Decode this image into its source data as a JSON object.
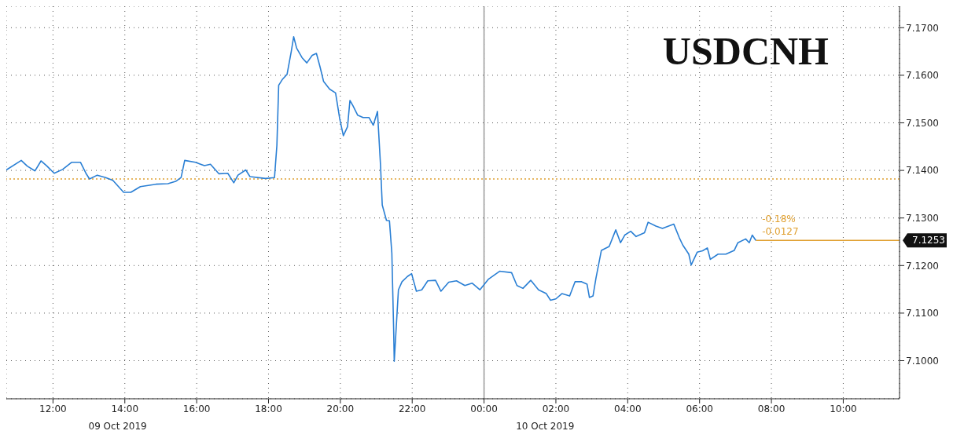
{
  "chart_data": {
    "type": "line",
    "title": "USDCNH",
    "x": [
      "2019-10-09T10:42",
      "2019-10-09T11:07",
      "2019-10-09T11:17",
      "2019-10-09T11:30",
      "2019-10-09T11:40",
      "2019-10-09T11:50",
      "2019-10-09T12:02",
      "2019-10-09T12:16",
      "2019-10-09T12:31",
      "2019-10-09T12:46",
      "2019-10-09T12:55",
      "2019-10-09T13:01",
      "2019-10-09T13:14",
      "2019-10-09T13:28",
      "2019-10-09T13:40",
      "2019-10-09T13:58",
      "2019-10-09T14:10",
      "2019-10-09T14:26",
      "2019-10-09T14:52",
      "2019-10-09T15:12",
      "2019-10-09T15:25",
      "2019-10-09T15:34",
      "2019-10-09T15:40",
      "2019-10-09T15:58",
      "2019-10-09T16:13",
      "2019-10-09T16:23",
      "2019-10-09T16:37",
      "2019-10-09T16:52",
      "2019-10-09T17:02",
      "2019-10-09T17:09",
      "2019-10-09T17:22",
      "2019-10-09T17:29",
      "2019-10-09T17:55",
      "2019-10-09T18:10",
      "2019-10-09T18:14",
      "2019-10-09T18:17",
      "2019-10-09T18:23",
      "2019-10-09T18:31",
      "2019-10-09T18:38",
      "2019-10-09T18:42",
      "2019-10-09T18:47",
      "2019-10-09T18:56",
      "2019-10-09T19:04",
      "2019-10-09T19:13",
      "2019-10-09T19:20",
      "2019-10-09T19:26",
      "2019-10-09T19:32",
      "2019-10-09T19:42",
      "2019-10-09T19:52",
      "2019-10-09T19:59",
      "2019-10-09T20:05",
      "2019-10-09T20:12",
      "2019-10-09T20:16",
      "2019-10-09T20:21",
      "2019-10-09T20:29",
      "2019-10-09T20:38",
      "2019-10-09T20:48",
      "2019-10-09T20:55",
      "2019-10-09T21:02",
      "2019-10-09T21:07",
      "2019-10-09T21:10",
      "2019-10-09T21:17",
      "2019-10-09T21:22",
      "2019-10-09T21:26",
      "2019-10-09T21:29",
      "2019-10-09T21:30",
      "2019-10-09T21:37",
      "2019-10-09T21:43",
      "2019-10-09T21:52",
      "2019-10-09T21:59",
      "2019-10-09T22:07",
      "2019-10-09T22:16",
      "2019-10-09T22:26",
      "2019-10-09T22:39",
      "2019-10-09T22:48",
      "2019-10-09T23:01",
      "2019-10-09T23:14",
      "2019-10-09T23:28",
      "2019-10-09T23:40",
      "2019-10-09T23:53",
      "2019-10-10T00:07",
      "2019-10-10T00:26",
      "2019-10-10T00:46",
      "2019-10-10T00:55",
      "2019-10-10T01:05",
      "2019-10-10T01:18",
      "2019-10-10T01:31",
      "2019-10-10T01:44",
      "2019-10-10T01:51",
      "2019-10-10T02:00",
      "2019-10-10T02:10",
      "2019-10-10T02:23",
      "2019-10-10T02:32",
      "2019-10-10T02:43",
      "2019-10-10T02:52",
      "2019-10-10T02:56",
      "2019-10-10T03:02",
      "2019-10-10T03:07",
      "2019-10-10T03:16",
      "2019-10-10T03:29",
      "2019-10-10T03:40",
      "2019-10-10T03:48",
      "2019-10-10T03:55",
      "2019-10-10T04:05",
      "2019-10-10T04:14",
      "2019-10-10T04:28",
      "2019-10-10T04:34",
      "2019-10-10T04:47",
      "2019-10-10T04:58",
      "2019-10-10T05:10",
      "2019-10-10T05:17",
      "2019-10-10T05:26",
      "2019-10-10T05:32",
      "2019-10-10T05:42",
      "2019-10-10T05:46",
      "2019-10-10T05:56",
      "2019-10-10T06:05",
      "2019-10-10T06:13",
      "2019-10-10T06:18",
      "2019-10-10T06:31",
      "2019-10-10T06:44",
      "2019-10-10T06:58",
      "2019-10-10T07:04",
      "2019-10-10T07:17",
      "2019-10-10T07:23",
      "2019-10-10T07:28",
      "2019-10-10T07:34"
    ],
    "series": [
      {
        "color": "#2a7fd4",
        "values": [
          7.1401,
          7.1421,
          7.1409,
          7.1399,
          7.142,
          7.1409,
          7.1394,
          7.1402,
          7.1417,
          7.1417,
          7.1394,
          7.1382,
          7.139,
          7.1385,
          7.1379,
          7.1354,
          7.1354,
          7.1366,
          7.1371,
          7.1372,
          7.1377,
          7.1385,
          7.1421,
          7.1417,
          7.141,
          7.1413,
          7.1393,
          7.1394,
          7.1374,
          7.139,
          7.1401,
          7.1387,
          7.1383,
          7.1385,
          7.1453,
          7.1579,
          7.1591,
          7.1602,
          7.165,
          7.1681,
          7.1657,
          7.1637,
          7.1626,
          7.1642,
          7.1646,
          7.1618,
          7.1587,
          7.1571,
          7.1563,
          7.1508,
          7.1473,
          7.1492,
          7.1547,
          7.1536,
          7.1516,
          7.1511,
          7.1511,
          7.1495,
          7.1524,
          7.1413,
          7.1327,
          7.1295,
          7.1294,
          7.1226,
          7.1067,
          7.0999,
          7.1149,
          7.1166,
          7.1177,
          7.1183,
          7.1146,
          7.1149,
          7.1168,
          7.1169,
          7.1146,
          7.1165,
          7.1168,
          7.1158,
          7.1163,
          7.1149,
          7.1171,
          7.1188,
          7.1185,
          7.1158,
          7.1152,
          7.1169,
          7.1149,
          7.1141,
          7.1127,
          7.113,
          7.1141,
          7.1136,
          7.1166,
          7.1166,
          7.1161,
          7.1133,
          7.1136,
          7.1174,
          7.1232,
          7.124,
          7.1275,
          7.1248,
          7.1264,
          7.1272,
          7.1261,
          7.1269,
          7.1291,
          7.1283,
          7.1278,
          7.1284,
          7.1287,
          7.1259,
          7.1243,
          7.1224,
          7.1201,
          7.1228,
          7.1231,
          7.1237,
          7.1213,
          7.1224,
          7.1224,
          7.1232,
          7.1248,
          7.1256,
          7.1248,
          7.1264,
          7.1253
        ]
      }
    ],
    "xlim": [
      "2019-10-09T10:42",
      "2019-10-10T11:34"
    ],
    "xticks": [
      {
        "value": "2019-10-09T12:00",
        "label": "12:00"
      },
      {
        "value": "2019-10-09T14:00",
        "label": "14:00"
      },
      {
        "value": "2019-10-09T16:00",
        "label": "16:00"
      },
      {
        "value": "2019-10-09T18:00",
        "label": "18:00"
      },
      {
        "value": "2019-10-09T20:00",
        "label": "20:00"
      },
      {
        "value": "2019-10-09T22:00",
        "label": "22:00"
      },
      {
        "value": "2019-10-10T00:00",
        "label": "00:00"
      },
      {
        "value": "2019-10-10T02:00",
        "label": "02:00"
      },
      {
        "value": "2019-10-10T04:00",
        "label": "04:00"
      },
      {
        "value": "2019-10-10T06:00",
        "label": "06:00"
      },
      {
        "value": "2019-10-10T08:00",
        "label": "08:00"
      },
      {
        "value": "2019-10-10T10:00",
        "label": "10:00"
      }
    ],
    "ylim": [
      7.092,
      7.1745
    ],
    "yticks": [
      {
        "value": 7.1,
        "label": "7.1000"
      },
      {
        "value": 7.11,
        "label": "7.1100"
      },
      {
        "value": 7.12,
        "label": "7.1200"
      },
      {
        "value": 7.13,
        "label": "7.1300"
      },
      {
        "value": 7.14,
        "label": "7.1400"
      },
      {
        "value": 7.15,
        "label": "7.1500"
      },
      {
        "value": 7.16,
        "label": "7.1600"
      },
      {
        "value": 7.17,
        "label": "7.1700"
      }
    ],
    "grid": true,
    "ref_lines": [
      {
        "axis": "y",
        "value": 7.1382,
        "color": "#e0a030",
        "line_style": "dotted"
      },
      {
        "axis": "y",
        "value": 7.1253,
        "label": "7.1253",
        "color": "#e0a030",
        "line_style": "solid"
      },
      {
        "axis": "x",
        "value": "2019-10-10T00:00",
        "color": "#999999",
        "line_style": "solid"
      }
    ],
    "annotations": [
      "-0.18%",
      "-0.0127",
      "09 Oct 2019",
      "10 Oct 2019"
    ]
  }
}
